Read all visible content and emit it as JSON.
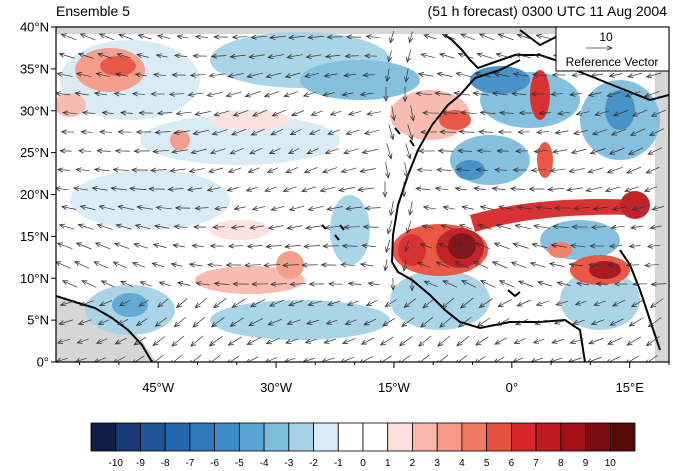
{
  "header": {
    "ensemble": "Ensemble 5",
    "forecast": "(51 h forecast) 0300 UTC 11 Aug 2004"
  },
  "map": {
    "lon_range": [
      -58,
      20
    ],
    "lat_range": [
      0,
      40
    ],
    "lat_ticks": [
      {
        "value": 40,
        "label": "40°N"
      },
      {
        "value": 35,
        "label": "35°N"
      },
      {
        "value": 30,
        "label": "30°N"
      },
      {
        "value": 25,
        "label": "25°N"
      },
      {
        "value": 20,
        "label": "20°N"
      },
      {
        "value": 15,
        "label": "15°N"
      },
      {
        "value": 10,
        "label": "10°N"
      },
      {
        "value": 5,
        "label": "5°N"
      },
      {
        "value": 0,
        "label": "0°"
      }
    ],
    "lon_ticks": [
      {
        "value": -45,
        "label": "45°W"
      },
      {
        "value": -30,
        "label": "30°W"
      },
      {
        "value": -15,
        "label": "15°W"
      },
      {
        "value": 0,
        "label": "0°"
      },
      {
        "value": 15,
        "label": "15°E"
      }
    ],
    "reference_vector": {
      "magnitude": "10",
      "label": "Reference Vector"
    },
    "colors": {
      "land_mask": "#d6d6d6",
      "coast": "#000000"
    }
  },
  "colorbar": {
    "labels": [
      "-10",
      "-9",
      "-8",
      "-7",
      "-6",
      "-5",
      "-4",
      "-3",
      "-2",
      "-1",
      "0",
      "1",
      "2",
      "3",
      "4",
      "5",
      "6",
      "7",
      "8",
      "9",
      "10"
    ],
    "colors": [
      "#0d1f45",
      "#173a74",
      "#1f5596",
      "#2468ab",
      "#2c78b8",
      "#3f8dc6",
      "#5aa5d2",
      "#7fbddd",
      "#a5d3e6",
      "#d7ecf6",
      "#ffffff",
      "#ffffff",
      "#fde0dd",
      "#f9b9ae",
      "#f49a86",
      "#f07a62",
      "#e9513f",
      "#d6282a",
      "#be1a1f",
      "#a30f16",
      "#7c0c10",
      "#560a0a"
    ]
  }
}
